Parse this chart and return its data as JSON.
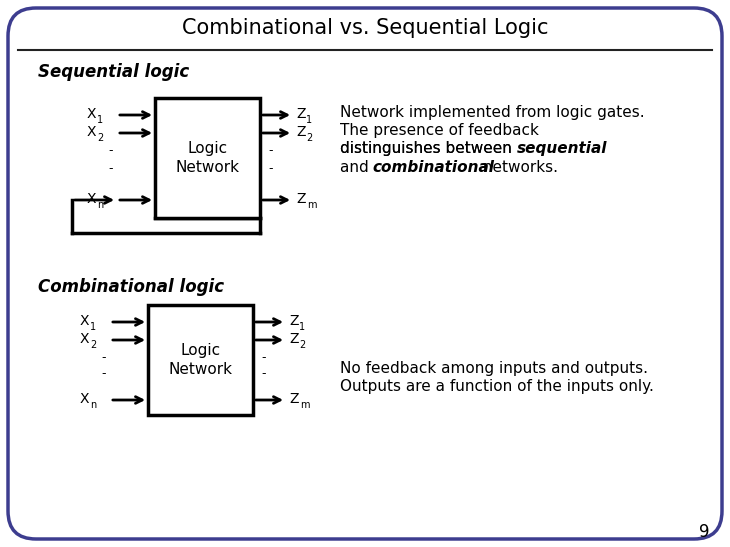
{
  "title": "Combinational vs. Sequential Logic",
  "bg_color": "#ffffff",
  "border_color": "#3d3d8f",
  "title_color": "#000000",
  "seq_label": "Sequential logic",
  "comb_label": "Combinational logic",
  "page_num": "9",
  "seq_desc_line1": "Network implemented from logic gates.",
  "seq_desc_line2": "The presence of feedback",
  "seq_desc_line3_pre": "distinguishes between ",
  "seq_desc_line3_italic": "sequential",
  "seq_desc_line4_pre": "and ",
  "seq_desc_line4_italic": "combinational",
  "seq_desc_line4_post": " networks.",
  "comb_desc_line1": "No feedback among inputs and outputs.",
  "comb_desc_line2": "Outputs are a function of the inputs only."
}
